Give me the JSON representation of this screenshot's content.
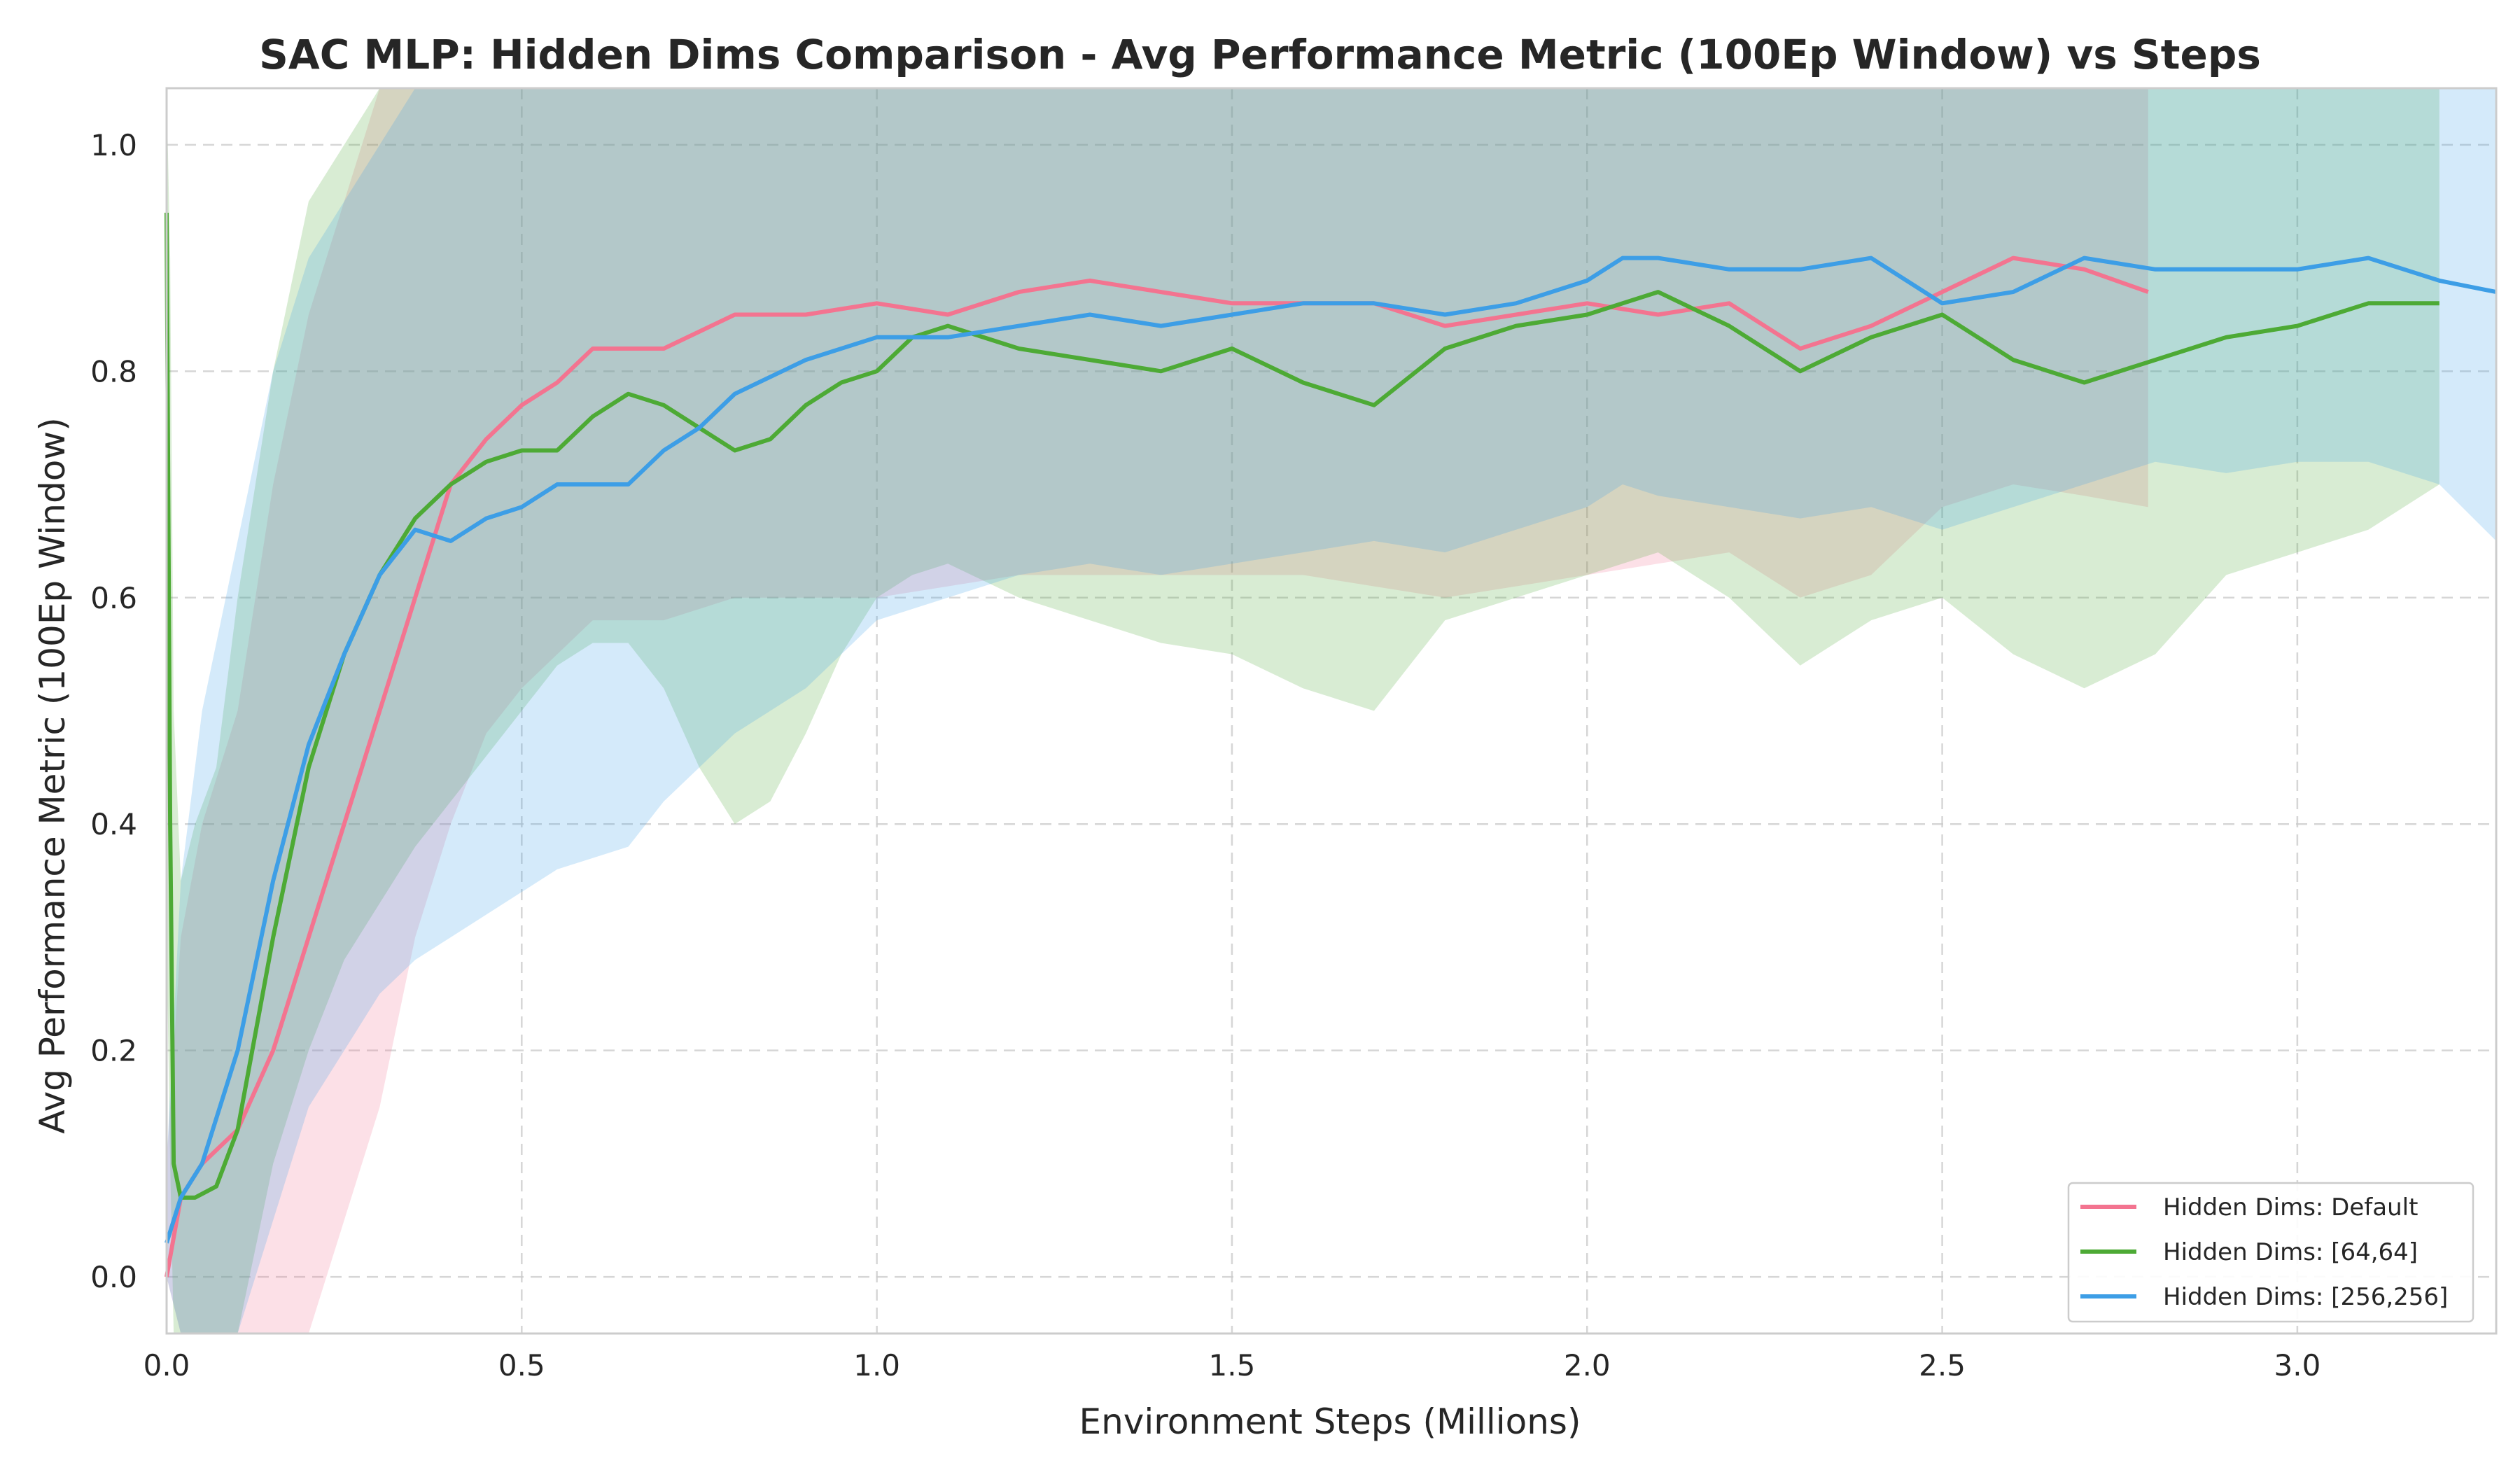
{
  "chart_data": {
    "type": "line",
    "title": "SAC MLP: Hidden Dims Comparison - Avg Performance Metric (100Ep Window) vs Steps",
    "xlabel": "Environment Steps (Millions)",
    "ylabel": "Avg Performance Metric (100Ep Window)",
    "xlim": [
      0.0,
      3.28
    ],
    "ylim": [
      -0.05,
      1.05
    ],
    "x_ticks": [
      0.0,
      0.5,
      1.0,
      1.5,
      2.0,
      2.5,
      3.0
    ],
    "x_tick_labels": [
      "0.0",
      "0.5",
      "1.0",
      "1.5",
      "2.0",
      "2.5",
      "3.0"
    ],
    "y_ticks": [
      0.0,
      0.2,
      0.4,
      0.6,
      0.8,
      1.0
    ],
    "y_tick_labels": [
      "0.0",
      "0.2",
      "0.4",
      "0.6",
      "0.8",
      "1.0"
    ],
    "grid": true,
    "legend_position": "bottom-right",
    "series": [
      {
        "name": "Hidden Dims: Default",
        "color": "#f37490",
        "x": [
          0.0,
          0.02,
          0.05,
          0.1,
          0.15,
          0.2,
          0.25,
          0.3,
          0.35,
          0.4,
          0.45,
          0.5,
          0.55,
          0.6,
          0.7,
          0.8,
          0.9,
          1.0,
          1.1,
          1.2,
          1.3,
          1.4,
          1.5,
          1.6,
          1.7,
          1.8,
          1.9,
          2.0,
          2.1,
          2.2,
          2.3,
          2.4,
          2.5,
          2.6,
          2.7,
          2.79
        ],
        "values": [
          0.0,
          0.07,
          0.1,
          0.13,
          0.2,
          0.3,
          0.4,
          0.5,
          0.6,
          0.7,
          0.74,
          0.77,
          0.79,
          0.82,
          0.82,
          0.85,
          0.85,
          0.86,
          0.85,
          0.87,
          0.88,
          0.87,
          0.86,
          0.86,
          0.86,
          0.84,
          0.85,
          0.86,
          0.85,
          0.86,
          0.82,
          0.84,
          0.87,
          0.9,
          0.89,
          0.87
        ],
        "band_lower": [
          0.0,
          -0.1,
          -0.2,
          -0.3,
          -0.2,
          -0.05,
          0.05,
          0.15,
          0.3,
          0.4,
          0.48,
          0.52,
          0.55,
          0.58,
          0.58,
          0.6,
          0.6,
          0.6,
          0.61,
          0.62,
          0.62,
          0.62,
          0.62,
          0.62,
          0.61,
          0.6,
          0.61,
          0.62,
          0.63,
          0.64,
          0.6,
          0.62,
          0.68,
          0.7,
          0.69,
          0.68
        ],
        "band_upper": [
          0.1,
          0.3,
          0.4,
          0.5,
          0.7,
          0.85,
          0.95,
          1.05,
          1.05,
          1.05,
          1.05,
          1.05,
          1.05,
          1.05,
          1.05,
          1.05,
          1.05,
          1.05,
          1.05,
          1.05,
          1.05,
          1.05,
          1.05,
          1.05,
          1.05,
          1.05,
          1.05,
          1.05,
          1.05,
          1.05,
          1.05,
          1.05,
          1.05,
          1.05,
          1.05,
          1.05
        ]
      },
      {
        "name": "Hidden Dims: [64,64]",
        "color": "#4daa35",
        "x": [
          0.0,
          0.005,
          0.01,
          0.02,
          0.04,
          0.07,
          0.1,
          0.15,
          0.2,
          0.25,
          0.3,
          0.35,
          0.4,
          0.45,
          0.5,
          0.55,
          0.6,
          0.65,
          0.7,
          0.75,
          0.8,
          0.85,
          0.9,
          0.95,
          1.0,
          1.05,
          1.1,
          1.2,
          1.3,
          1.4,
          1.5,
          1.6,
          1.7,
          1.8,
          1.9,
          2.0,
          2.1,
          2.2,
          2.3,
          2.4,
          2.5,
          2.6,
          2.7,
          2.8,
          2.9,
          3.0,
          3.1,
          3.2
        ],
        "values": [
          0.94,
          0.4,
          0.1,
          0.07,
          0.07,
          0.08,
          0.13,
          0.3,
          0.45,
          0.55,
          0.62,
          0.67,
          0.7,
          0.72,
          0.73,
          0.73,
          0.76,
          0.78,
          0.77,
          0.75,
          0.73,
          0.74,
          0.77,
          0.79,
          0.8,
          0.83,
          0.84,
          0.82,
          0.81,
          0.8,
          0.82,
          0.79,
          0.77,
          0.82,
          0.84,
          0.85,
          0.87,
          0.84,
          0.8,
          0.83,
          0.85,
          0.81,
          0.79,
          0.81,
          0.83,
          0.84,
          0.86,
          0.86
        ],
        "band_lower": [
          0.3,
          0.1,
          -0.1,
          -0.2,
          -0.15,
          -0.1,
          -0.05,
          0.1,
          0.2,
          0.28,
          0.33,
          0.38,
          0.42,
          0.46,
          0.5,
          0.54,
          0.56,
          0.56,
          0.52,
          0.45,
          0.4,
          0.42,
          0.48,
          0.55,
          0.6,
          0.62,
          0.63,
          0.6,
          0.58,
          0.56,
          0.55,
          0.52,
          0.5,
          0.58,
          0.6,
          0.62,
          0.64,
          0.6,
          0.54,
          0.58,
          0.6,
          0.55,
          0.52,
          0.55,
          0.62,
          0.64,
          0.66,
          0.7
        ],
        "band_upper": [
          1.05,
          0.9,
          0.5,
          0.35,
          0.4,
          0.45,
          0.6,
          0.8,
          0.95,
          1.0,
          1.05,
          1.05,
          1.05,
          1.05,
          1.05,
          1.05,
          1.05,
          1.05,
          1.05,
          1.05,
          1.05,
          1.05,
          1.05,
          1.05,
          1.05,
          1.05,
          1.05,
          1.05,
          1.05,
          1.05,
          1.05,
          1.05,
          1.05,
          1.05,
          1.05,
          1.05,
          1.05,
          1.05,
          1.05,
          1.05,
          1.05,
          1.05,
          1.05,
          1.05,
          1.05,
          1.05,
          1.05,
          1.05
        ]
      },
      {
        "name": "Hidden Dims: [256,256]",
        "color": "#3d9ee6",
        "x": [
          0.0,
          0.02,
          0.05,
          0.1,
          0.15,
          0.2,
          0.25,
          0.3,
          0.35,
          0.4,
          0.45,
          0.5,
          0.55,
          0.6,
          0.65,
          0.7,
          0.75,
          0.8,
          0.9,
          1.0,
          1.1,
          1.2,
          1.3,
          1.4,
          1.5,
          1.6,
          1.7,
          1.8,
          1.9,
          2.0,
          2.05,
          2.1,
          2.2,
          2.3,
          2.4,
          2.5,
          2.6,
          2.7,
          2.8,
          2.9,
          3.0,
          3.1,
          3.2,
          3.28
        ],
        "values": [
          0.03,
          0.07,
          0.1,
          0.2,
          0.35,
          0.47,
          0.55,
          0.62,
          0.66,
          0.65,
          0.67,
          0.68,
          0.7,
          0.7,
          0.7,
          0.73,
          0.75,
          0.78,
          0.81,
          0.83,
          0.83,
          0.84,
          0.85,
          0.84,
          0.85,
          0.86,
          0.86,
          0.85,
          0.86,
          0.88,
          0.9,
          0.9,
          0.89,
          0.89,
          0.9,
          0.86,
          0.87,
          0.9,
          0.89,
          0.89,
          0.89,
          0.9,
          0.88,
          0.87
        ],
        "band_lower": [
          0.0,
          -0.1,
          -0.15,
          -0.05,
          0.05,
          0.15,
          0.2,
          0.25,
          0.28,
          0.3,
          0.32,
          0.34,
          0.36,
          0.37,
          0.38,
          0.42,
          0.45,
          0.48,
          0.52,
          0.58,
          0.6,
          0.62,
          0.63,
          0.62,
          0.63,
          0.64,
          0.65,
          0.64,
          0.66,
          0.68,
          0.7,
          0.69,
          0.68,
          0.67,
          0.68,
          0.66,
          0.68,
          0.7,
          0.72,
          0.71,
          0.72,
          0.72,
          0.7,
          0.65
        ],
        "band_upper": [
          0.1,
          0.35,
          0.5,
          0.65,
          0.8,
          0.9,
          0.95,
          1.0,
          1.05,
          1.05,
          1.05,
          1.05,
          1.05,
          1.05,
          1.05,
          1.05,
          1.05,
          1.05,
          1.05,
          1.05,
          1.05,
          1.05,
          1.05,
          1.05,
          1.05,
          1.05,
          1.05,
          1.05,
          1.05,
          1.05,
          1.05,
          1.05,
          1.05,
          1.05,
          1.05,
          1.05,
          1.05,
          1.05,
          1.05,
          1.05,
          1.05,
          1.05,
          1.05,
          1.05
        ]
      }
    ]
  }
}
